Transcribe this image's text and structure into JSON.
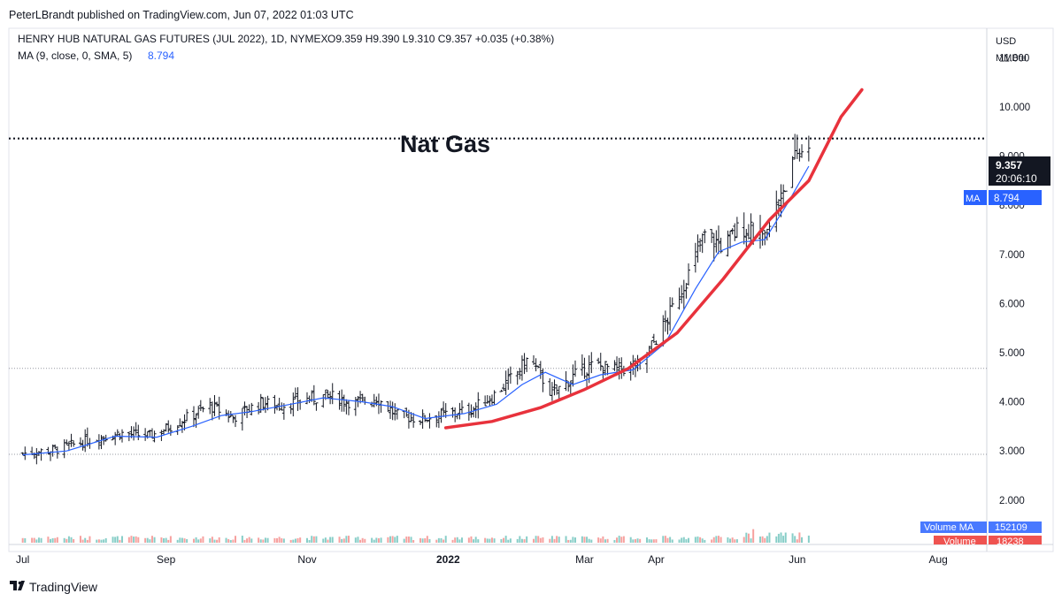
{
  "publisher": "PeterLBrandt published on TradingView.com, Jun 07, 2022 01:03 UTC",
  "legend": {
    "symbol": "HENRY HUB NATURAL GAS FUTURES (JUL 2022), 1D, NYMEX",
    "ohlc": "O9.359  H9.390  L9.310  C9.357  +0.035 (+0.38%)",
    "ma_label": "MA (9, close, 0, SMA, 5)",
    "ma_value": "8.794"
  },
  "axis": {
    "currency": "USD",
    "unit": "MMBtu",
    "price_badge": "9.357",
    "countdown": "20:06:10",
    "ma_badge_label": "MA",
    "ma_badge_value": "8.794",
    "volume_ma_label": "Volume MA",
    "volume_ma_value": "152109",
    "volume_label": "Volume",
    "volume_value": "18238"
  },
  "annotation": "Nat Gas",
  "branding": "TradingView",
  "colors": {
    "up": "#26a69a",
    "down": "#ef5350",
    "ma": "#2962ff",
    "curve": "#e8323c",
    "bar": "#131722",
    "badge": "#131722"
  },
  "chart_data": {
    "type": "ohlc-bar",
    "y_ticks": [
      "11.000",
      "10.000",
      "9.000",
      "8.000",
      "7.000",
      "6.000",
      "5.000",
      "4.000",
      "3.000",
      "2.000"
    ],
    "x_ticks": [
      "Jul",
      "Sep",
      "Nov",
      "2022",
      "Mar",
      "Apr",
      "Jun",
      "Aug"
    ],
    "y_range": [
      1.6,
      11.6
    ],
    "horizontal_lines": [
      9.357,
      4.68,
      2.93
    ],
    "close_path": [
      [
        "2021-07-01",
        2.95
      ],
      [
        "2021-07-15",
        3.02
      ],
      [
        "2021-08-01",
        3.25
      ],
      [
        "2021-08-12",
        3.36
      ],
      [
        "2021-08-25",
        3.3
      ],
      [
        "2021-09-05",
        3.55
      ],
      [
        "2021-09-20",
        3.92
      ],
      [
        "2021-09-30",
        3.68
      ],
      [
        "2021-10-12",
        3.98
      ],
      [
        "2021-10-20",
        3.92
      ],
      [
        "2021-11-01",
        4.05
      ],
      [
        "2021-11-10",
        4.12
      ],
      [
        "2021-11-22",
        3.97
      ],
      [
        "2021-12-01",
        4.08
      ],
      [
        "2021-12-10",
        3.72
      ],
      [
        "2021-12-20",
        3.65
      ],
      [
        "2021-12-31",
        3.75
      ],
      [
        "2022-01-10",
        3.82
      ],
      [
        "2022-01-20",
        4.1
      ],
      [
        "2022-01-31",
        4.6
      ],
      [
        "2022-02-05",
        4.9
      ],
      [
        "2022-02-15",
        4.15
      ],
      [
        "2022-02-25",
        4.55
      ],
      [
        "2022-03-05",
        4.75
      ],
      [
        "2022-03-15",
        4.65
      ],
      [
        "2022-03-25",
        4.75
      ],
      [
        "2022-04-05",
        5.6
      ],
      [
        "2022-04-15",
        6.6
      ],
      [
        "2022-04-22",
        7.4
      ],
      [
        "2022-04-30",
        7.15
      ],
      [
        "2022-05-08",
        7.6
      ],
      [
        "2022-05-18",
        7.25
      ],
      [
        "2022-05-25",
        8.25
      ],
      [
        "2022-05-31",
        8.9
      ],
      [
        "2022-06-06",
        9.357
      ]
    ],
    "ma_path": [
      [
        "2021-07-01",
        2.92
      ],
      [
        "2021-07-20",
        3.0
      ],
      [
        "2021-08-10",
        3.3
      ],
      [
        "2021-08-28",
        3.28
      ],
      [
        "2021-09-12",
        3.5
      ],
      [
        "2021-09-25",
        3.72
      ],
      [
        "2021-10-08",
        3.8
      ],
      [
        "2021-10-25",
        3.95
      ],
      [
        "2021-11-08",
        4.08
      ],
      [
        "2021-11-25",
        4.0
      ],
      [
        "2021-12-08",
        3.9
      ],
      [
        "2021-12-22",
        3.66
      ],
      [
        "2022-01-08",
        3.76
      ],
      [
        "2022-01-22",
        3.95
      ],
      [
        "2022-02-02",
        4.35
      ],
      [
        "2022-02-12",
        4.6
      ],
      [
        "2022-02-24",
        4.35
      ],
      [
        "2022-03-08",
        4.55
      ],
      [
        "2022-03-22",
        4.65
      ],
      [
        "2022-04-05",
        5.2
      ],
      [
        "2022-04-18",
        6.3
      ],
      [
        "2022-04-28",
        7.05
      ],
      [
        "2022-05-08",
        7.25
      ],
      [
        "2022-05-18",
        7.3
      ],
      [
        "2022-05-28",
        8.05
      ],
      [
        "2022-06-06",
        8.794
      ]
    ],
    "curve_path": [
      [
        "2021-12-31",
        3.47
      ],
      [
        "2022-01-20",
        3.6
      ],
      [
        "2022-02-10",
        3.88
      ],
      [
        "2022-03-01",
        4.25
      ],
      [
        "2022-03-20",
        4.68
      ],
      [
        "2022-04-10",
        5.4
      ],
      [
        "2022-04-30",
        6.5
      ],
      [
        "2022-05-20",
        7.7
      ],
      [
        "2022-06-06",
        8.5
      ],
      [
        "2022-06-20",
        9.8
      ],
      [
        "2022-06-29",
        10.35
      ]
    ]
  }
}
